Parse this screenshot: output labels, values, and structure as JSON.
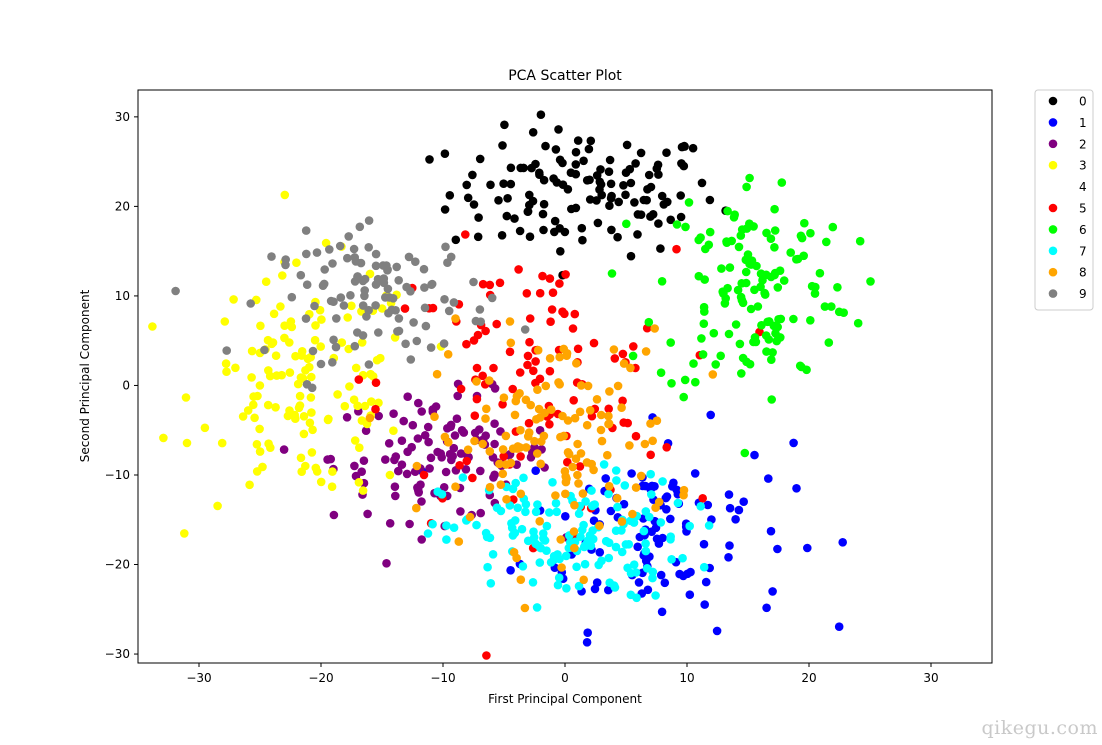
{
  "chart_data": {
    "type": "scatter",
    "title": "PCA Scatter Plot",
    "xlabel": "First Principal Component",
    "ylabel": "Second Principal Component",
    "xlim": [
      -35,
      35
    ],
    "ylim": [
      -31,
      33
    ],
    "xticks": [
      -30,
      -20,
      -10,
      0,
      10,
      20,
      30
    ],
    "yticks": [
      -30,
      -20,
      -10,
      0,
      10,
      20,
      30
    ],
    "grid": false,
    "legend_placement": "outside-top-right",
    "series": [
      {
        "name": "0",
        "color": "#000000",
        "center": [
          1.5,
          21.5
        ],
        "spread": [
          5.5,
          3.5
        ],
        "count": 130
      },
      {
        "name": "1",
        "color": "#0000ff",
        "center": [
          7.5,
          -16.0
        ],
        "spread": [
          5.5,
          5.5
        ],
        "count": 110
      },
      {
        "name": "2",
        "color": "#800080",
        "center": [
          -10.0,
          -8.0
        ],
        "spread": [
          4.5,
          3.5
        ],
        "count": 120
      },
      {
        "name": "3",
        "color": "#ffff00",
        "center": [
          -21.0,
          0.0
        ],
        "spread": [
          4.5,
          6.5
        ],
        "count": 140
      },
      {
        "name": "4",
        "color": "#ffffff",
        "center": [
          0.0,
          0.0
        ],
        "spread": [
          0.0,
          0.0
        ],
        "count": 0
      },
      {
        "name": "5",
        "color": "#ff0000",
        "center": [
          -3.0,
          0.0
        ],
        "spread": [
          6.0,
          7.5
        ],
        "count": 110
      },
      {
        "name": "6",
        "color": "#00ff00",
        "center": [
          15.5,
          11.0
        ],
        "spread": [
          4.0,
          6.5
        ],
        "count": 140
      },
      {
        "name": "7",
        "color": "#00ffff",
        "center": [
          0.0,
          -17.0
        ],
        "spread": [
          5.0,
          3.5
        ],
        "count": 150
      },
      {
        "name": "8",
        "color": "#ffa500",
        "center": [
          -1.0,
          -6.0
        ],
        "spread": [
          5.0,
          6.0
        ],
        "count": 140
      },
      {
        "name": "9",
        "color": "#808080",
        "center": [
          -15.0,
          10.0
        ],
        "spread": [
          4.5,
          3.5
        ],
        "count": 110
      }
    ]
  },
  "watermark": "qikegu.com"
}
